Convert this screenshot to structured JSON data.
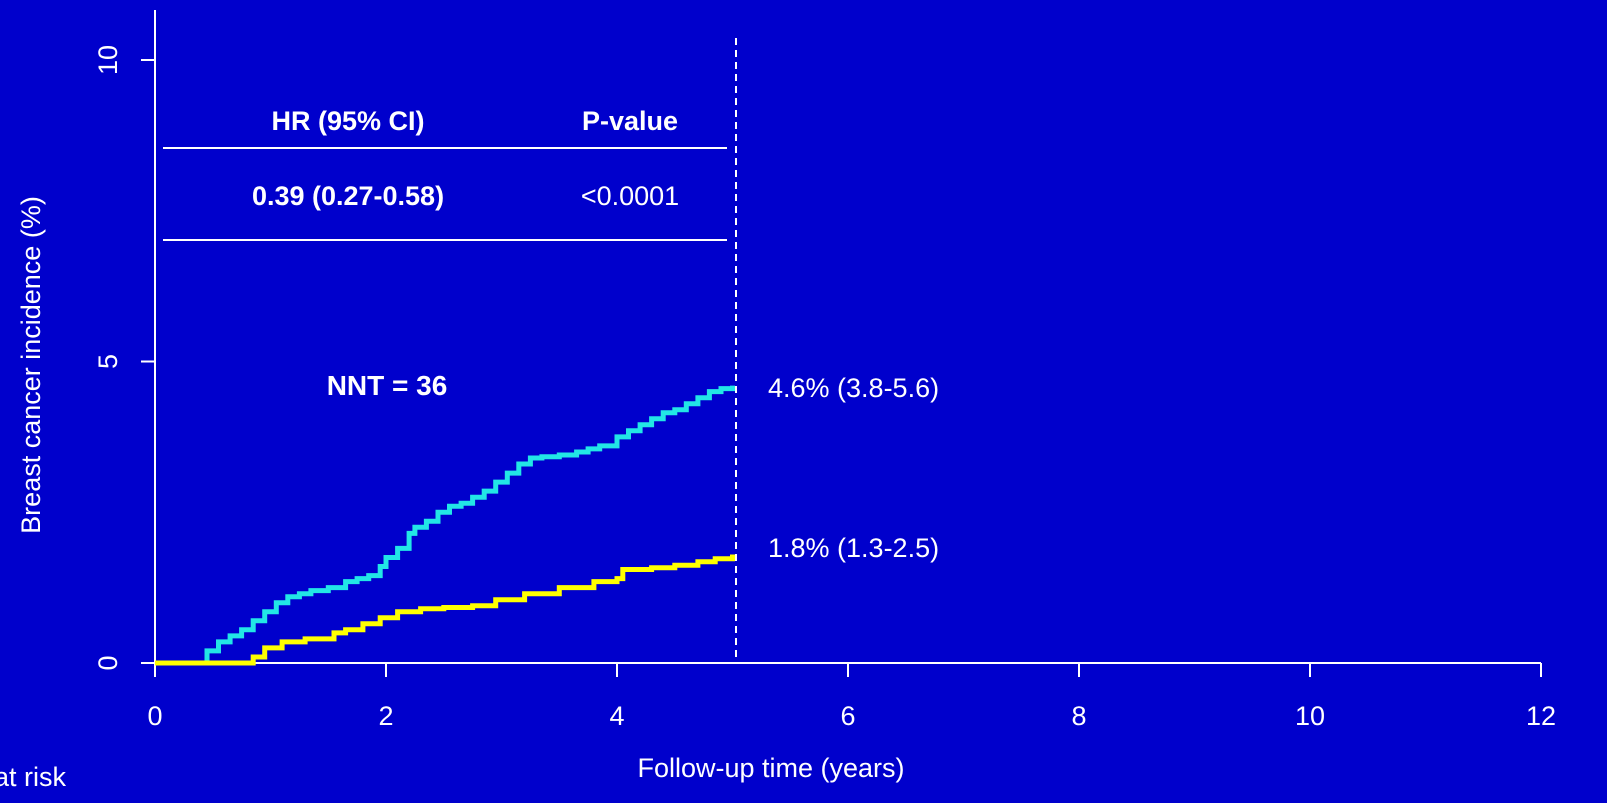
{
  "colors": {
    "background": "#0000cc",
    "axis": "#ffffff",
    "text": "#ffffff",
    "cyan_series": "#22e6e6",
    "yellow_series": "#ffff00"
  },
  "chart_data": {
    "type": "line",
    "xlabel": "Follow-up time (years)",
    "ylabel": "Breast cancer incidence (%)",
    "xlim": [
      0,
      12
    ],
    "ylim": [
      0,
      10
    ],
    "xticks": [
      0,
      2,
      4,
      6,
      8,
      10,
      12
    ],
    "yticks": [
      0,
      5,
      10
    ],
    "xtick_labels": [
      "0",
      "2",
      "4",
      "6",
      "8",
      "10",
      "12"
    ],
    "ytick_labels": [
      "0",
      "5",
      "10"
    ],
    "grid": false,
    "series": [
      {
        "color": "#22e6e6",
        "x": [
          0,
          0.42,
          0.45,
          0.55,
          0.65,
          0.75,
          0.85,
          0.95,
          1.05,
          1.15,
          1.25,
          1.35,
          1.5,
          1.65,
          1.75,
          1.85,
          1.95,
          2.0,
          2.1,
          2.2,
          2.25,
          2.35,
          2.45,
          2.55,
          2.65,
          2.75,
          2.85,
          2.95,
          3.05,
          3.15,
          3.25,
          3.35,
          3.5,
          3.65,
          3.75,
          3.85,
          4.0,
          4.1,
          4.2,
          4.3,
          4.4,
          4.5,
          4.6,
          4.7,
          4.8,
          4.9,
          5.0
        ],
        "y": [
          0,
          0,
          0.2,
          0.35,
          0.45,
          0.55,
          0.7,
          0.85,
          1.0,
          1.1,
          1.15,
          1.2,
          1.25,
          1.35,
          1.4,
          1.45,
          1.6,
          1.75,
          1.9,
          2.15,
          2.25,
          2.35,
          2.5,
          2.6,
          2.65,
          2.75,
          2.85,
          3.0,
          3.15,
          3.3,
          3.4,
          3.42,
          3.45,
          3.5,
          3.55,
          3.6,
          3.75,
          3.85,
          3.95,
          4.05,
          4.15,
          4.2,
          4.3,
          4.4,
          4.5,
          4.55,
          4.6
        ]
      },
      {
        "color": "#ffff00",
        "x": [
          0,
          0.82,
          0.85,
          0.95,
          1.1,
          1.3,
          1.55,
          1.65,
          1.8,
          1.95,
          2.1,
          2.3,
          2.5,
          2.75,
          2.95,
          3.2,
          3.5,
          3.8,
          4.0,
          4.05,
          4.3,
          4.5,
          4.7,
          4.85,
          5.0
        ],
        "y": [
          0,
          0,
          0.1,
          0.25,
          0.35,
          0.4,
          0.5,
          0.55,
          0.65,
          0.75,
          0.85,
          0.9,
          0.92,
          0.95,
          1.05,
          1.15,
          1.25,
          1.35,
          1.4,
          1.55,
          1.58,
          1.62,
          1.68,
          1.73,
          1.8
        ]
      }
    ],
    "vline_x": 5,
    "annotations": {
      "table_header_hr": "HR (95% CI)",
      "table_header_p": "P-value",
      "table_hr": "0.39 (0.27-0.58)",
      "table_p": "<0.0001",
      "nnt": "NNT = 36",
      "end_label_upper": "4.6% (3.8-5.6)",
      "end_label_lower": "1.8% (1.3-2.5)",
      "at_risk": "at risk"
    }
  }
}
